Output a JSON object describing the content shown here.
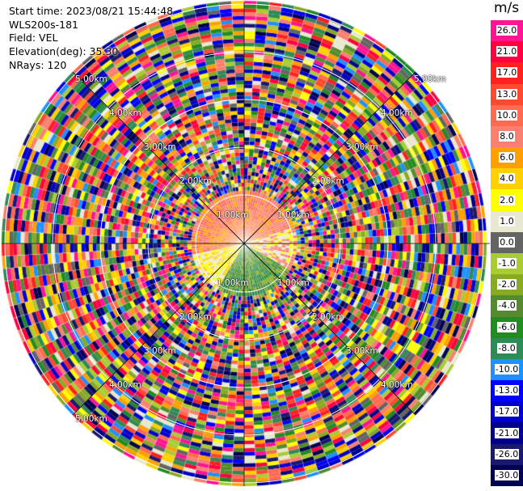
{
  "header": {
    "start_time": "Start time: 2023/08/21 15:44:48",
    "instrument": "WLS200s-181",
    "field": "Field: VEL",
    "elevation": "Elevation(deg): 35.30",
    "nrays": "NRays: 120"
  },
  "colorbar": {
    "unit": "m/s",
    "levels": [
      {
        "label": "26.0",
        "color": "#ff1493"
      },
      {
        "label": "21.0",
        "color": "#ff0040"
      },
      {
        "label": "17.0",
        "color": "#ff2020"
      },
      {
        "label": "13.0",
        "color": "#ff4a30"
      },
      {
        "label": "10.0",
        "color": "#ff6a50"
      },
      {
        "label": "8.0",
        "color": "#fa8070"
      },
      {
        "label": "6.0",
        "color": "#ffa000"
      },
      {
        "label": "4.0",
        "color": "#ffd000"
      },
      {
        "label": "2.0",
        "color": "#ffff00"
      },
      {
        "label": "1.0",
        "color": "#e8e8d0"
      },
      {
        "label": "0.0",
        "color": "#646464"
      },
      {
        "label": "-1.0",
        "color": "#aacc33"
      },
      {
        "label": "-2.0",
        "color": "#88aa22"
      },
      {
        "label": "-4.0",
        "color": "#558b2f"
      },
      {
        "label": "-6.0",
        "color": "#228b22"
      },
      {
        "label": "-8.0",
        "color": "#2e8b57"
      },
      {
        "label": "-10.0",
        "color": "#1e90ff"
      },
      {
        "label": "-13.0",
        "color": "#0000ff"
      },
      {
        "label": "-17.0",
        "color": "#0000cd"
      },
      {
        "label": "-21.0",
        "color": "#00008b"
      },
      {
        "label": "-26.0",
        "color": "#191970"
      },
      {
        "label": "-30.0",
        "color": "#000050"
      }
    ]
  },
  "range_labels": {
    "r1": "1.00km",
    "r2": "2.00km",
    "r3": "3.00km",
    "r4": "4.00km",
    "r5": "5.00km"
  }
}
